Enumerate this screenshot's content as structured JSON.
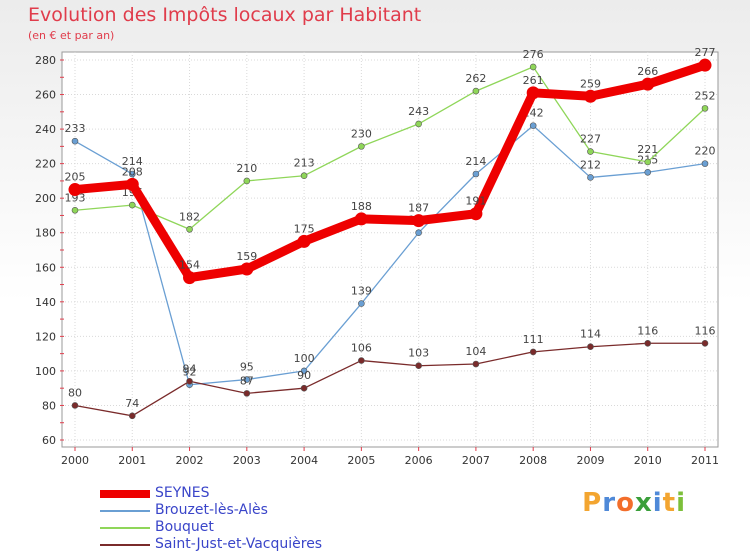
{
  "header": {
    "title": "Evolution des Impôts locaux par Habitant",
    "subtitle": "(en € et par an)"
  },
  "brand": {
    "letters": [
      "P",
      "r",
      "o",
      "x",
      "i",
      "t",
      "i"
    ],
    "colors": [
      "#f3a530",
      "#4f89d8",
      "#f36e2b",
      "#3a9f3a",
      "#4f89d8",
      "#f3a530",
      "#7cbf3a"
    ]
  },
  "chart_data": {
    "type": "line",
    "title": "Evolution des Impôts locaux par Habitant",
    "ylabel": "(en € et par an)",
    "xlabel": "",
    "categories": [
      "2000",
      "2001",
      "2002",
      "2003",
      "2004",
      "2005",
      "2006",
      "2007",
      "2008",
      "2009",
      "2010",
      "2011"
    ],
    "ylim": [
      60,
      280
    ],
    "yticks": [
      60,
      80,
      100,
      120,
      140,
      160,
      180,
      200,
      220,
      240,
      260,
      280
    ],
    "grid": true,
    "legend_position": "bottom-left",
    "series": [
      {
        "name": "Brouzet-lès-Alès",
        "color": "#6a9fd3",
        "values": [
          233,
          214,
          92,
          95,
          100,
          139,
          180,
          214,
          242,
          212,
          215,
          220
        ]
      },
      {
        "name": "Bouquet",
        "color": "#8fd659",
        "values": [
          193,
          196,
          182,
          210,
          213,
          230,
          243,
          262,
          276,
          227,
          221,
          252
        ]
      },
      {
        "name": "Saint-Just-et-Vacquières",
        "color": "#7a2b2b",
        "values": [
          80,
          74,
          94,
          87,
          90,
          106,
          103,
          104,
          111,
          114,
          116,
          116
        ]
      },
      {
        "name": "SEYNES",
        "color": "#ee0000",
        "values": [
          205,
          208,
          154,
          159,
          175,
          188,
          187,
          191,
          261,
          259,
          266,
          277
        ]
      }
    ],
    "legend_order": [
      "SEYNES",
      "Brouzet-lès-Alès",
      "Bouquet",
      "Saint-Just-et-Vacquières"
    ]
  }
}
